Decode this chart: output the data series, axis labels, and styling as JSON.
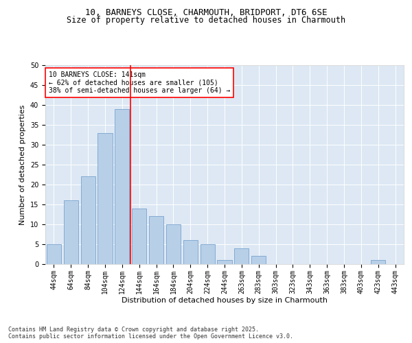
{
  "title_line1": "10, BARNEYS CLOSE, CHARMOUTH, BRIDPORT, DT6 6SE",
  "title_line2": "Size of property relative to detached houses in Charmouth",
  "xlabel": "Distribution of detached houses by size in Charmouth",
  "ylabel": "Number of detached properties",
  "bar_labels": [
    "44sqm",
    "64sqm",
    "84sqm",
    "104sqm",
    "124sqm",
    "144sqm",
    "164sqm",
    "184sqm",
    "204sqm",
    "224sqm",
    "244sqm",
    "263sqm",
    "283sqm",
    "303sqm",
    "323sqm",
    "343sqm",
    "363sqm",
    "383sqm",
    "403sqm",
    "423sqm",
    "443sqm"
  ],
  "bar_values": [
    5,
    16,
    22,
    33,
    39,
    14,
    12,
    10,
    6,
    5,
    1,
    4,
    2,
    0,
    0,
    0,
    0,
    0,
    0,
    1,
    0
  ],
  "bar_color": "#b8cfe8",
  "bar_edge_color": "#6898c8",
  "vline_position": 4.5,
  "vline_color": "red",
  "annotation_text": "10 BARNEYS CLOSE: 141sqm\n← 62% of detached houses are smaller (105)\n38% of semi-detached houses are larger (64) →",
  "annotation_box_color": "white",
  "annotation_box_edge_color": "red",
  "ylim": [
    0,
    50
  ],
  "yticks": [
    0,
    5,
    10,
    15,
    20,
    25,
    30,
    35,
    40,
    45,
    50
  ],
  "background_color": "#dde8f4",
  "footer_text": "Contains HM Land Registry data © Crown copyright and database right 2025.\nContains public sector information licensed under the Open Government Licence v3.0.",
  "title_fontsize": 9,
  "subtitle_fontsize": 8.5,
  "tick_fontsize": 7,
  "label_fontsize": 8,
  "annotation_fontsize": 7,
  "footer_fontsize": 6
}
